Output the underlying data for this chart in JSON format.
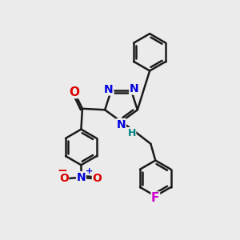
{
  "background_color": "#ebebeb",
  "bond_color": "#1a1a1a",
  "bond_width": 1.8,
  "atom_colors": {
    "N": "#0000dd",
    "O": "#dd0000",
    "F": "#cc00cc",
    "H": "#008080"
  },
  "font_size": 11
}
